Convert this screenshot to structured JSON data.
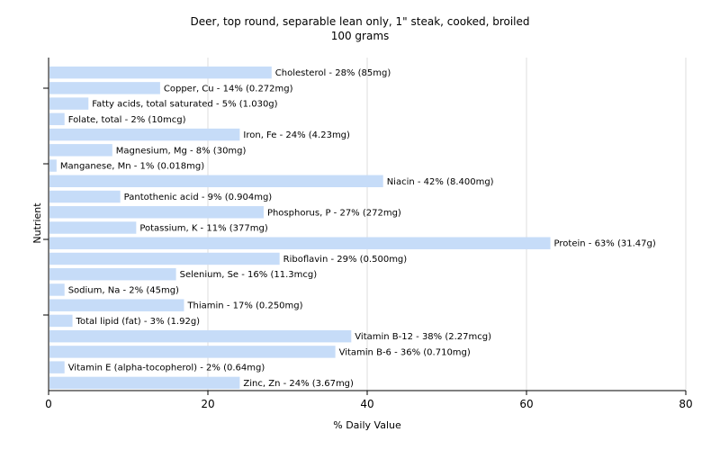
{
  "chart_data": {
    "type": "bar",
    "orientation": "horizontal",
    "title": "Deer, top round, separable lean only, 1\" steak, cooked, broiled",
    "subtitle": "100 grams",
    "xlabel": "% Daily Value",
    "ylabel": "Nutrient",
    "xlim": [
      0,
      80
    ],
    "xticks": [
      0,
      20,
      40,
      60,
      80
    ],
    "grid": "vertical",
    "bar_color": "#c6dcf8",
    "categories": [
      "Cholesterol",
      "Copper, Cu",
      "Fatty acids, total saturated",
      "Folate, total",
      "Iron, Fe",
      "Magnesium, Mg",
      "Manganese, Mn",
      "Niacin",
      "Pantothenic acid",
      "Phosphorus, P",
      "Potassium, K",
      "Protein",
      "Riboflavin",
      "Selenium, Se",
      "Sodium, Na",
      "Thiamin",
      "Total lipid (fat)",
      "Vitamin B-12",
      "Vitamin B-6",
      "Vitamin E (alpha-tocopherol)",
      "Zinc, Zn"
    ],
    "values": [
      28,
      14,
      5,
      2,
      24,
      8,
      1,
      42,
      9,
      27,
      11,
      63,
      29,
      16,
      2,
      17,
      3,
      38,
      36,
      2,
      24
    ],
    "labels": [
      "Cholesterol - 28% (85mg)",
      "Copper, Cu - 14% (0.272mg)",
      "Fatty acids, total saturated - 5% (1.030g)",
      "Folate, total - 2% (10mcg)",
      "Iron, Fe - 24% (4.23mg)",
      "Magnesium, Mg - 8% (30mg)",
      "Manganese, Mn - 1% (0.018mg)",
      "Niacin - 42% (8.400mg)",
      "Pantothenic acid - 9% (0.904mg)",
      "Phosphorus, P - 27% (272mg)",
      "Potassium, K - 11% (377mg)",
      "Protein - 63% (31.47g)",
      "Riboflavin - 29% (0.500mg)",
      "Selenium, Se - 16% (11.3mcg)",
      "Sodium, Na - 2% (45mg)",
      "Thiamin - 17% (0.250mg)",
      "Total lipid (fat) - 3% (1.92g)",
      "Vitamin B-12 - 38% (2.27mcg)",
      "Vitamin B-6 - 36% (0.710mg)",
      "Vitamin E (alpha-tocopherol) - 2% (0.64mg)",
      "Zinc, Zn - 24% (3.67mg)"
    ]
  }
}
